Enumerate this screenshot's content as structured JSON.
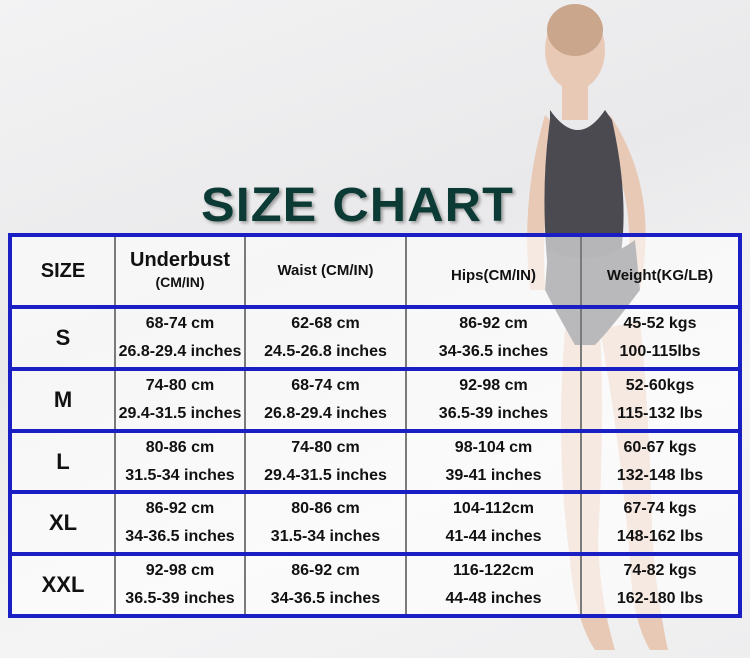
{
  "title": "SIZE CHART",
  "colors": {
    "title": "#0c3a34",
    "border": "#1a1fc4"
  },
  "header": {
    "size": "SIZE",
    "underbust": "Underbust",
    "underbust_unit": "(CM/IN)",
    "waist": "Waist (CM/IN)",
    "hips": "Hips(CM/IN)",
    "weight": "Weight(KG/LB)"
  },
  "rows": [
    {
      "size": "S",
      "underbust": [
        "68-74 cm",
        "26.8-29.4 inches"
      ],
      "waist": [
        "62-68 cm",
        "24.5-26.8 inches"
      ],
      "hips": [
        "86-92 cm",
        "34-36.5 inches"
      ],
      "weight": [
        "45-52 kgs",
        "100-115lbs"
      ]
    },
    {
      "size": "M",
      "underbust": [
        "74-80 cm",
        "29.4-31.5 inches"
      ],
      "waist": [
        "68-74 cm",
        "26.8-29.4 inches"
      ],
      "hips": [
        "92-98 cm",
        "36.5-39 inches"
      ],
      "weight": [
        "52-60kgs",
        "115-132 lbs"
      ]
    },
    {
      "size": "L",
      "underbust": [
        "80-86 cm",
        "31.5-34 inches"
      ],
      "waist": [
        "74-80 cm",
        "29.4-31.5 inches"
      ],
      "hips": [
        "98-104 cm",
        "39-41 inches"
      ],
      "weight": [
        "60-67 kgs",
        "132-148 lbs"
      ]
    },
    {
      "size": "XL",
      "underbust": [
        "86-92 cm",
        "34-36.5 inches"
      ],
      "waist": [
        "80-86 cm",
        "31.5-34 inches"
      ],
      "hips": [
        "104-112cm",
        "41-44 inches"
      ],
      "weight": [
        "67-74 kgs",
        "148-162 lbs"
      ]
    },
    {
      "size": "XXL",
      "underbust": [
        "92-98 cm",
        "36.5-39 inches"
      ],
      "waist": [
        "86-92 cm",
        "34-36.5 inches"
      ],
      "hips": [
        "116-122cm",
        "44-48 inches"
      ],
      "weight": [
        "74-82 kgs",
        "162-180 lbs"
      ]
    }
  ]
}
